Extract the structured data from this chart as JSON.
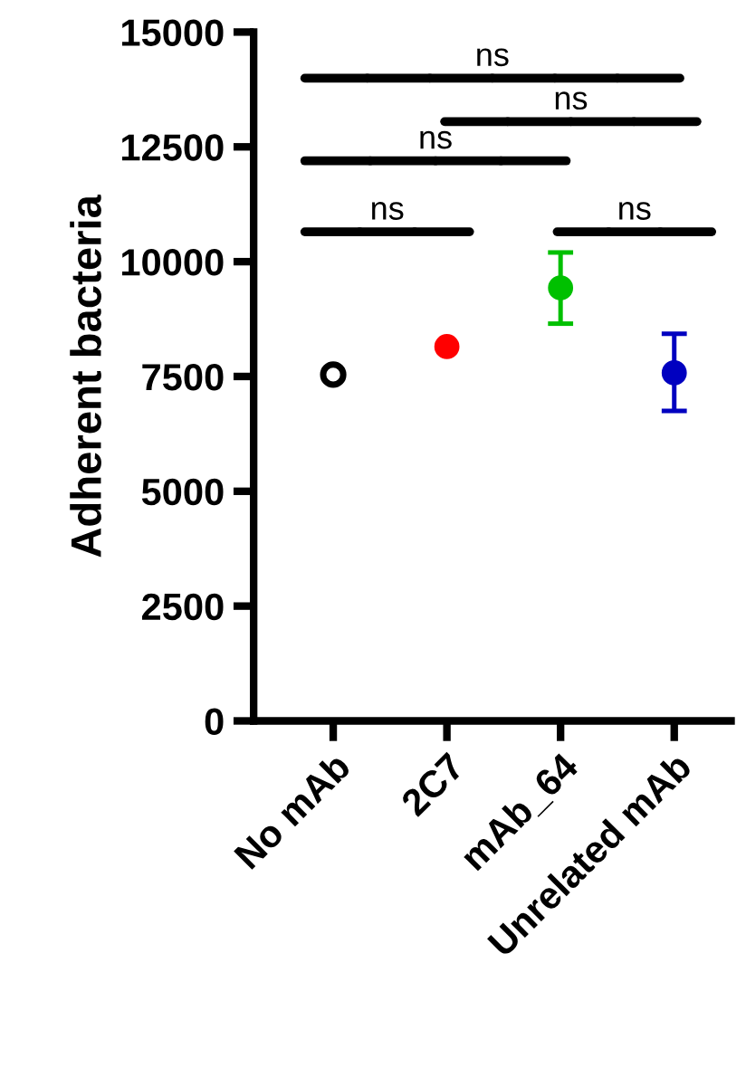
{
  "chart_data": {
    "type": "scatter",
    "ylabel": "Adherent bacteria",
    "categories": [
      "No mAb",
      "2C7",
      "mAb_64",
      "Unrelated mAb"
    ],
    "values": [
      7540,
      8150,
      9430,
      7580
    ],
    "colors": [
      "#000000",
      "#ff0000",
      "#00c000",
      "#0000c0"
    ],
    "errors": [
      null,
      null,
      [
        8650,
        10200
      ],
      [
        6750,
        8430
      ]
    ],
    "ylim": [
      0,
      15000
    ],
    "yticks": [
      0,
      2500,
      5000,
      7500,
      10000,
      12500,
      15000
    ],
    "marker": "circle",
    "grid": false,
    "legend": false,
    "annotations": [
      "ns",
      "ns",
      "ns",
      "ns",
      "ns"
    ]
  }
}
